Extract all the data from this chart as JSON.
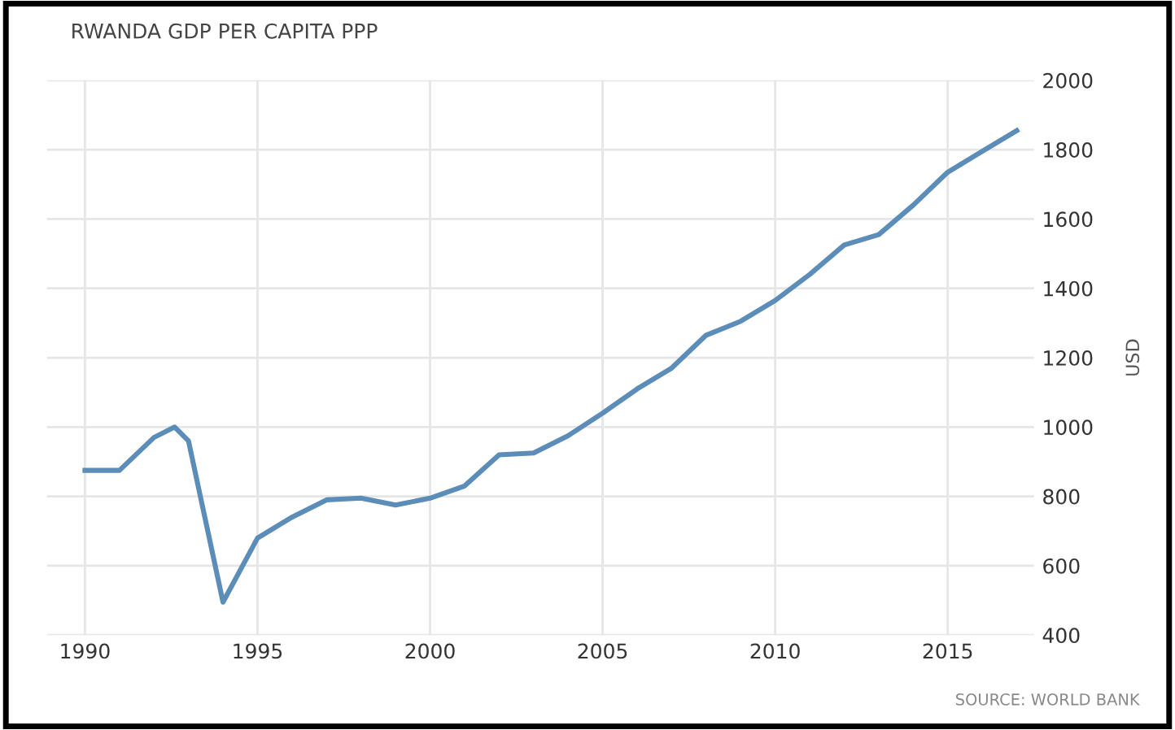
{
  "chart_data": {
    "type": "line",
    "title": "RWANDA GDP PER CAPITA PPP",
    "ylabel": "USD",
    "annotations": [
      "SOURCE: WORLD BANK"
    ],
    "x": [
      1990,
      1991,
      1992,
      1992.6,
      1993,
      1994,
      1995,
      1996,
      1997,
      1998,
      1999,
      2000,
      2001,
      2002,
      2003,
      2004,
      2005,
      2006,
      2007,
      2008,
      2009,
      2010,
      2011,
      2012,
      2013,
      2014,
      2015,
      2016,
      2017
    ],
    "series": [
      {
        "color": "#5b8db8",
        "values": [
          875,
          875,
          970,
          1000,
          960,
          495,
          680,
          740,
          790,
          795,
          775,
          795,
          830,
          920,
          925,
          975,
          1040,
          1110,
          1170,
          1265,
          1305,
          1365,
          1440,
          1525,
          1555,
          1640,
          1735,
          1795,
          1855
        ]
      }
    ],
    "xlim": [
      1988.9,
      2017.5
    ],
    "xticks": [
      1990,
      1995,
      2000,
      2005,
      2010,
      2015
    ],
    "ylim": [
      400,
      2000
    ],
    "yticks": [
      400,
      600,
      800,
      1000,
      1200,
      1400,
      1600,
      1800,
      2000
    ],
    "grid": true,
    "legend": false,
    "marker": "none",
    "line_style": "solid"
  }
}
